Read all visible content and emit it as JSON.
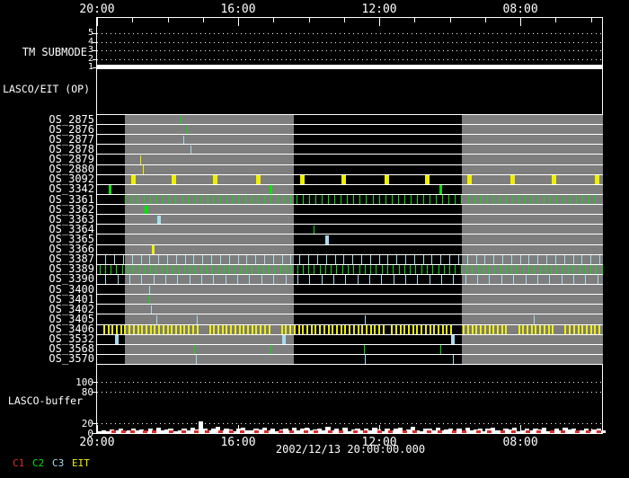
{
  "chart_data": {
    "type": "timeline",
    "time_axis": {
      "tick_labels": [
        "20:00",
        "16:00",
        "12:00",
        "08:00"
      ],
      "tick_hours": [
        0,
        4,
        8,
        12
      ],
      "minor_tick_step_hours": 1,
      "range_hours": [
        0,
        14.34
      ],
      "axis_positions": [
        "top",
        "bottom"
      ]
    },
    "date_label": "2002/12/13 20:00:00.000",
    "colors": {
      "C1": "#dd2c2c",
      "C2": "#00e400",
      "C3": "#a6dcee",
      "EIT": "#efef00",
      "band": "#7e7e7e",
      "frame": "#ffffff",
      "background": "#000000"
    },
    "gray_bands_hours": [
      {
        "from": 0.79,
        "to": 5.57
      },
      {
        "from": 10.33,
        "to": 14.34
      }
    ],
    "tm_submode": {
      "label": "TM SUBMODE",
      "y_ticks": [
        5,
        4,
        3,
        2,
        1
      ],
      "grid_values": [
        5,
        4,
        3,
        2
      ],
      "value": 1
    },
    "op_label": "LASCO/EIT (OP)",
    "rows": [
      {
        "name": "OS_2875",
        "color": "C2",
        "w": 1,
        "marks_hours": [
          2.39
        ]
      },
      {
        "name": "OS_2876",
        "color": "C2",
        "w": 1,
        "marks_hours": [
          2.57
        ]
      },
      {
        "name": "OS_2877",
        "color": "C3",
        "w": 1,
        "marks_hours": [
          2.47
        ]
      },
      {
        "name": "OS_2878",
        "color": "C3",
        "w": 1,
        "marks_hours": [
          2.65
        ]
      },
      {
        "name": "OS_2879",
        "color": "EIT",
        "w": 1,
        "marks_hours": [
          1.24
        ]
      },
      {
        "name": "OS_2880",
        "color": "EIT",
        "w": 1,
        "marks_hours": [
          1.32
        ]
      },
      {
        "name": "OS_3092",
        "color": "EIT",
        "w": 5,
        "marks_hours": [
          1.02,
          2.19,
          3.36,
          4.56,
          5.81,
          7.0,
          8.22,
          9.37,
          10.57,
          11.77,
          12.96,
          14.18
        ]
      },
      {
        "name": "OS_3342",
        "color": "C2",
        "w": 3,
        "marks_hours": [
          0.38,
          4.94,
          9.73
        ]
      },
      {
        "name": "OS_3361",
        "color": "C2",
        "w": 1,
        "run": {
          "from": 0.8,
          "to": 14.26,
          "step": 0.18
        }
      },
      {
        "name": "OS_3362",
        "color": "C2",
        "w": 4,
        "marks_hours": [
          1.4
        ]
      },
      {
        "name": "OS_3363",
        "color": "C3",
        "w": 4,
        "marks_hours": [
          1.76
        ]
      },
      {
        "name": "OS_3364",
        "color": "C2",
        "w": 1,
        "marks_hours": [
          6.14
        ]
      },
      {
        "name": "OS_3365",
        "color": "C3",
        "w": 4,
        "marks_hours": [
          6.52
        ]
      },
      {
        "name": "OS_3366",
        "color": "EIT",
        "w": 3,
        "marks_hours": [
          1.58
        ]
      },
      {
        "name": "OS_3387",
        "color": "C3",
        "w": 1,
        "run": {
          "from": 0.25,
          "to": 14.28,
          "step": 0.25
        }
      },
      {
        "name": "OS_3389",
        "color": "C2",
        "w": 1,
        "run": {
          "from": 0.08,
          "to": 14.32,
          "step": 0.16
        }
      },
      {
        "name": "OS_3390",
        "color": "C3",
        "w": 1,
        "run": {
          "from": 0.25,
          "to": 14.25,
          "step": 0.34
        }
      },
      {
        "name": "OS_3400",
        "color": "C3",
        "w": 1,
        "marks_hours": [
          1.48
        ]
      },
      {
        "name": "OS_3401",
        "color": "C2",
        "w": 1,
        "marks_hours": [
          1.48
        ]
      },
      {
        "name": "OS_3402",
        "color": "C3",
        "w": 1,
        "marks_hours": [
          1.55
        ]
      },
      {
        "name": "OS_3405",
        "color": "C3",
        "w": 1,
        "marks_hours": [
          1.7,
          2.83,
          7.61,
          12.4
        ]
      },
      {
        "name": "OS_3406",
        "color": "EIT",
        "w": 2,
        "run": {
          "from": 0.2,
          "to": 14.32,
          "step": 0.12,
          "gaps": [
            [
              2.95,
              3.15
            ],
            [
              4.95,
              5.2
            ],
            [
              8.15,
              8.35
            ],
            [
              10.1,
              10.3
            ],
            [
              11.65,
              11.85
            ],
            [
              13.0,
              13.2
            ]
          ]
        }
      },
      {
        "name": "OS_3532",
        "color": "C3",
        "w": 4,
        "marks_hours": [
          0.56,
          5.3,
          10.09
        ]
      },
      {
        "name": "OS_3568",
        "color": "C2",
        "w": 1,
        "marks_hours": [
          2.77,
          4.93,
          7.59,
          9.73
        ]
      },
      {
        "name": "OS_3570",
        "color": "C3",
        "w": 1,
        "marks_hours": [
          2.81,
          7.6,
          10.11
        ]
      }
    ],
    "buffer": {
      "label": "LASCO-buffer",
      "y_tick_values": [
        100,
        80,
        20,
        0
      ],
      "grid_values": [
        100,
        80,
        20
      ],
      "ylim": [
        0,
        105
      ],
      "sample_step_hours": 0.12,
      "values": [
        4,
        6,
        3,
        7,
        5,
        8,
        4,
        6,
        9,
        5,
        7,
        4,
        8,
        6,
        10,
        5,
        7,
        9,
        4,
        6,
        8,
        5,
        11,
        7,
        23,
        9,
        5,
        8,
        12,
        6,
        9,
        7,
        4,
        8,
        10,
        6,
        5,
        9,
        7,
        11,
        6,
        8,
        4,
        7,
        9,
        5,
        10,
        6,
        8,
        11,
        5,
        7,
        9,
        6,
        12,
        5,
        8,
        6,
        10,
        4,
        7,
        9,
        5,
        8,
        6,
        11,
        7,
        4,
        9,
        6,
        8,
        10,
        5,
        7,
        12,
        6,
        4,
        8,
        9,
        5,
        11,
        6,
        7,
        9,
        4,
        8,
        6,
        10,
        5,
        7,
        8,
        4,
        9,
        11,
        5,
        6,
        8,
        7,
        10,
        4,
        6,
        9,
        5,
        8,
        7,
        11,
        4,
        6,
        9,
        5,
        10,
        7,
        8,
        5,
        6,
        9,
        4,
        7,
        8,
        6
      ],
      "c1_marks_hours": [
        0.45,
        0.75,
        1.0,
        1.35,
        1.6,
        2.1,
        2.45,
        2.8,
        3.1,
        3.5,
        3.8,
        4.1,
        4.5,
        4.8,
        5.2,
        5.5,
        5.9,
        6.2,
        6.6,
        6.9,
        7.3,
        7.6,
        8.0,
        8.3,
        8.7,
        9.0,
        9.4,
        9.7,
        10.1,
        10.4,
        10.8,
        11.1,
        11.5,
        11.8,
        12.2,
        12.5,
        12.9,
        13.2,
        13.6,
        13.9,
        14.2
      ]
    },
    "legend": [
      {
        "label": "C1",
        "color_key": "C1"
      },
      {
        "label": "C2",
        "color_key": "C2"
      },
      {
        "label": "C3",
        "color_key": "C3"
      },
      {
        "label": "EIT",
        "color_key": "EIT"
      }
    ]
  }
}
